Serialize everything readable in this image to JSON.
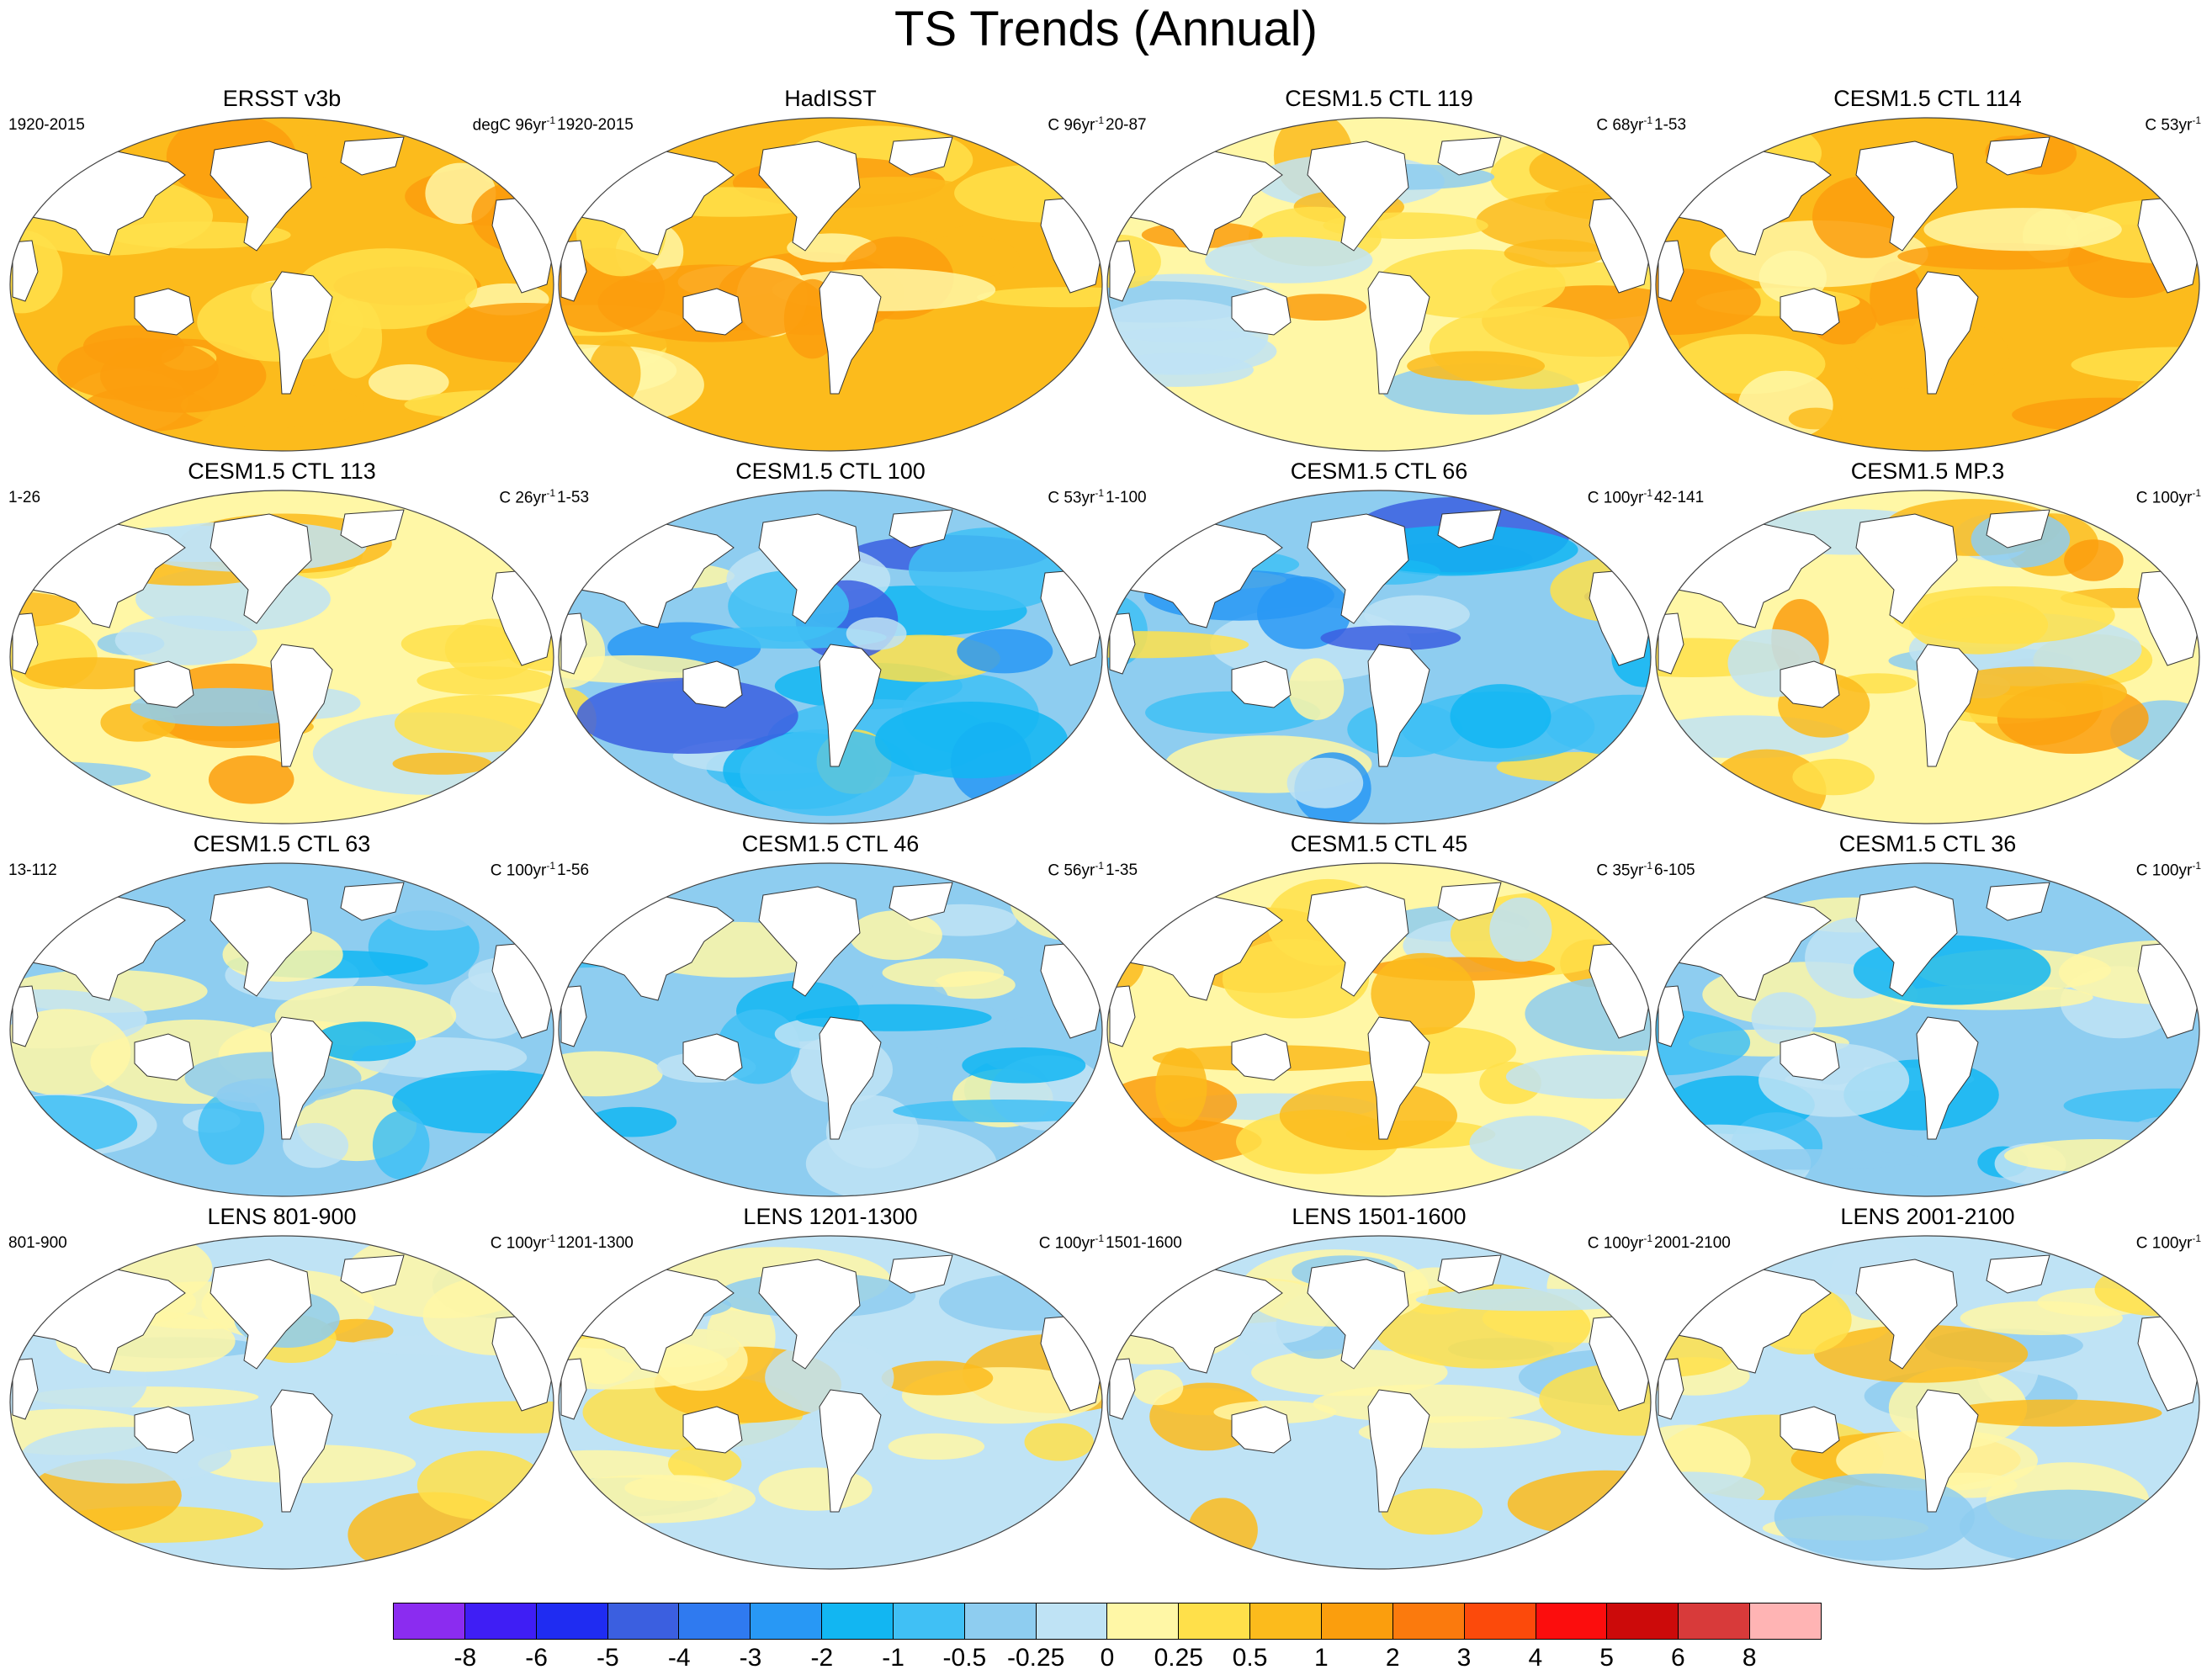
{
  "title": "TS Trends (Annual)",
  "panels": [
    {
      "title": "ERSST v3b",
      "period": "1920-2015",
      "units": "degC 96yr",
      "pattern": "warm-strong"
    },
    {
      "title": "HadISST",
      "period": "1920-2015",
      "units": "C 96yr",
      "pattern": "warm-strong-noisy"
    },
    {
      "title": "CESM1.5 CTL 119",
      "period": "20-87",
      "units": "C 68yr",
      "pattern": "mixed-warm"
    },
    {
      "title": "CESM1.5 CTL 114",
      "period": "1-53",
      "units": "C 53yr",
      "pattern": "warm-strong"
    },
    {
      "title": "CESM1.5 CTL 113",
      "period": "1-26",
      "units": "C 26yr",
      "pattern": "mixed-warm"
    },
    {
      "title": "CESM1.5 CTL 100",
      "period": "1-53",
      "units": "C 53yr",
      "pattern": "cool-strong"
    },
    {
      "title": "CESM1.5 CTL 66",
      "period": "1-100",
      "units": "C 100yr",
      "pattern": "cool-strong"
    },
    {
      "title": "CESM1.5 MP.3",
      "period": "42-141",
      "units": "C 100yr",
      "pattern": "mixed-warm"
    },
    {
      "title": "CESM1.5 CTL 63",
      "period": "13-112",
      "units": "C 100yr",
      "pattern": "cool"
    },
    {
      "title": "CESM1.5 CTL 46",
      "period": "1-56",
      "units": "C 56yr",
      "pattern": "cool"
    },
    {
      "title": "CESM1.5 CTL 45",
      "period": "1-35",
      "units": "C 35yr",
      "pattern": "mixed-warm"
    },
    {
      "title": "CESM1.5 CTL 36",
      "period": "6-105",
      "units": "C 100yr",
      "pattern": "cool"
    },
    {
      "title": "LENS 801-900",
      "period": "801-900",
      "units": "C 100yr",
      "pattern": "mixed"
    },
    {
      "title": "LENS 1201-1300",
      "period": "1201-1300",
      "units": "C 100yr",
      "pattern": "mixed"
    },
    {
      "title": "LENS 1501-1600",
      "period": "1501-1600",
      "units": "C 100yr",
      "pattern": "mixed"
    },
    {
      "title": "LENS 2001-2100",
      "period": "2001-2100",
      "units": "C 100yr",
      "pattern": "mixed"
    }
  ],
  "units_superscript": "-1",
  "colorbar": {
    "colors": [
      "#8b2cf0",
      "#3f1ef5",
      "#1f2cf2",
      "#3b5fe0",
      "#2f7af0",
      "#2898f5",
      "#12b6f2",
      "#40c0f5",
      "#8ecdf0",
      "#bfe3f5",
      "#fff7a6",
      "#ffe04a",
      "#fcbb1c",
      "#fb9e0d",
      "#fb7a0d",
      "#fc4a0b",
      "#fc0d0d",
      "#cc0a0a",
      "#d83a3a",
      "#ffb4b4"
    ],
    "labels": [
      "-8",
      "-6",
      "-5",
      "-4",
      "-3",
      "-2",
      "-1",
      "-0.5",
      "-0.25",
      "0",
      "0.25",
      "0.5",
      "1",
      "2",
      "3",
      "4",
      "5",
      "6",
      "8"
    ]
  }
}
